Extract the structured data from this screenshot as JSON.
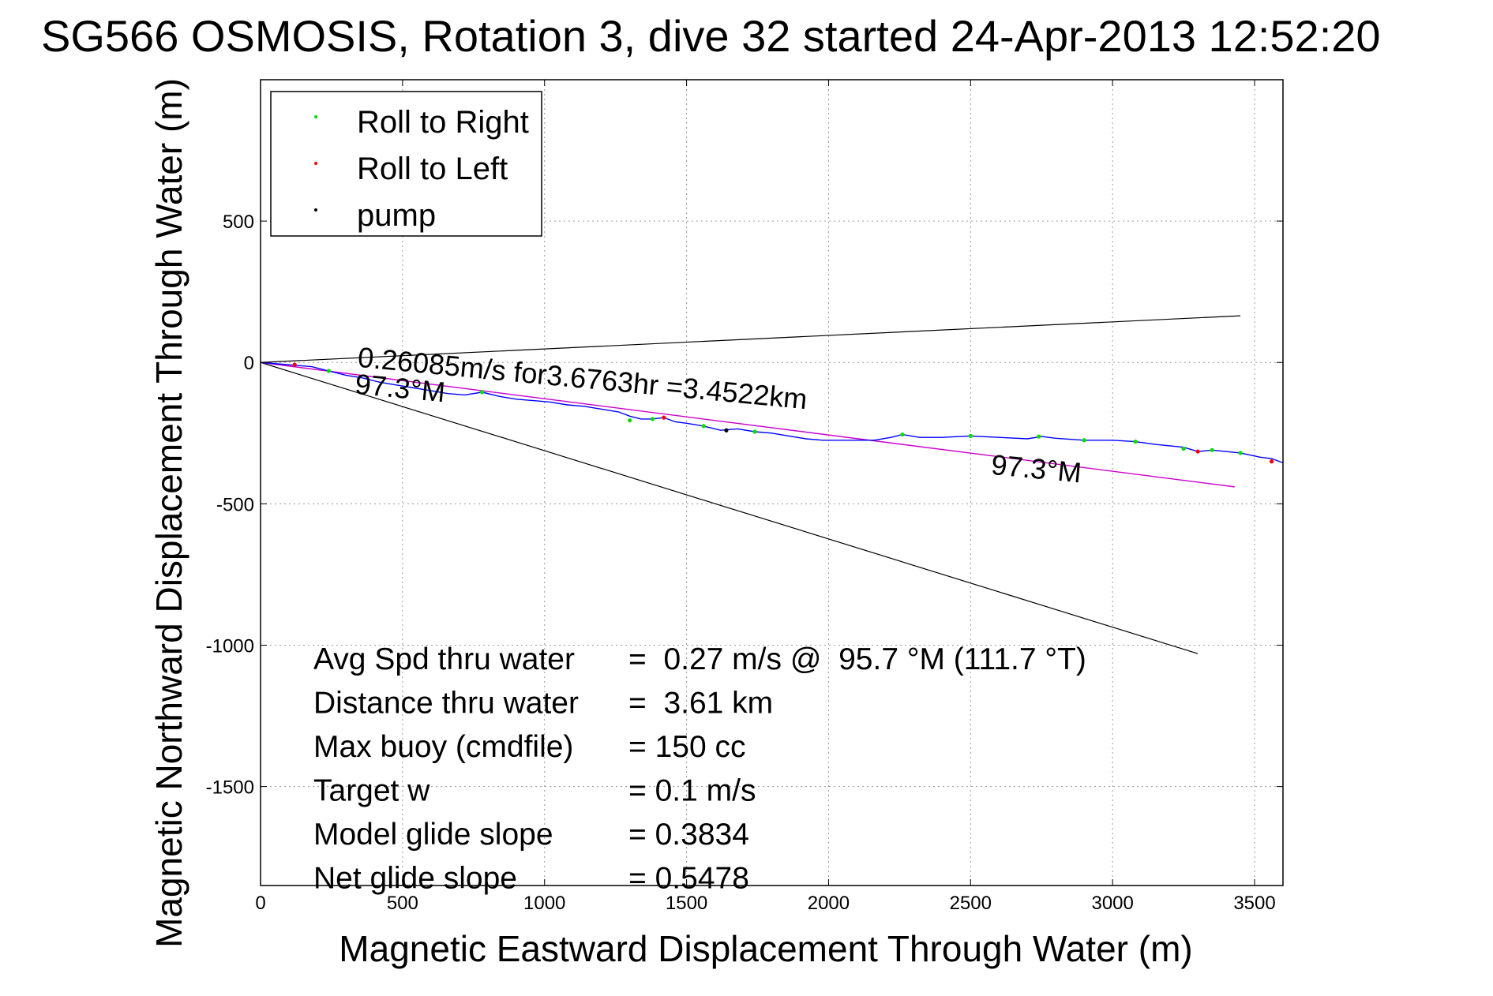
{
  "chart_data": {
    "type": "line",
    "title": "SG566 OSMOSIS, Rotation 3, dive 32 started 24-Apr-2013 12:52:20",
    "xlabel": "Magnetic Eastward Displacement Through Water (m)",
    "ylabel": "Magnetic Northward Displacement Through Water (m)",
    "xlim": [
      0,
      3600
    ],
    "ylim": [
      -1850,
      1000
    ],
    "x_ticks": [
      "0",
      "500",
      "1000",
      "1500",
      "2000",
      "2500",
      "3000",
      "3500"
    ],
    "y_ticks": [
      "500",
      "0",
      "-500",
      "-1000",
      "-1500"
    ],
    "grid": true,
    "legend_placement": "top-left",
    "legend": [
      {
        "label": "Roll to Right",
        "color": "#00dd00"
      },
      {
        "label": "Roll to Left",
        "color": "#ff0000"
      },
      {
        "label": "pump",
        "color": "#000000"
      }
    ],
    "track": {
      "color": "#0000ff",
      "points": [
        [
          0,
          0
        ],
        [
          60,
          -5
        ],
        [
          120,
          -10
        ],
        [
          180,
          -15
        ],
        [
          240,
          -30
        ],
        [
          300,
          -45
        ],
        [
          360,
          -55
        ],
        [
          420,
          -70
        ],
        [
          480,
          -80
        ],
        [
          540,
          -90
        ],
        [
          600,
          -100
        ],
        [
          660,
          -110
        ],
        [
          720,
          -115
        ],
        [
          780,
          -105
        ],
        [
          840,
          -120
        ],
        [
          900,
          -130
        ],
        [
          960,
          -135
        ],
        [
          1020,
          -140
        ],
        [
          1080,
          -150
        ],
        [
          1140,
          -155
        ],
        [
          1200,
          -165
        ],
        [
          1260,
          -175
        ],
        [
          1300,
          -190
        ],
        [
          1340,
          -200
        ],
        [
          1380,
          -200
        ],
        [
          1420,
          -195
        ],
        [
          1460,
          -210
        ],
        [
          1500,
          -215
        ],
        [
          1560,
          -225
        ],
        [
          1620,
          -240
        ],
        [
          1680,
          -235
        ],
        [
          1740,
          -245
        ],
        [
          1800,
          -250
        ],
        [
          1860,
          -260
        ],
        [
          1920,
          -270
        ],
        [
          1980,
          -275
        ],
        [
          2040,
          -275
        ],
        [
          2100,
          -275
        ],
        [
          2160,
          -275
        ],
        [
          2220,
          -265
        ],
        [
          2260,
          -255
        ],
        [
          2320,
          -265
        ],
        [
          2400,
          -265
        ],
        [
          2500,
          -260
        ],
        [
          2600,
          -265
        ],
        [
          2700,
          -270
        ],
        [
          2750,
          -262
        ],
        [
          2800,
          -268
        ],
        [
          2900,
          -275
        ],
        [
          3000,
          -275
        ],
        [
          3080,
          -280
        ],
        [
          3150,
          -290
        ],
        [
          3250,
          -300
        ],
        [
          3300,
          -315
        ],
        [
          3350,
          -310
        ],
        [
          3450,
          -320
        ],
        [
          3520,
          -335
        ],
        [
          3560,
          -340
        ],
        [
          3600,
          -355
        ]
      ]
    },
    "roll_right_points": [
      [
        240,
        -30
      ],
      [
        780,
        -105
      ],
      [
        1300,
        -205
      ],
      [
        1380,
        -200
      ],
      [
        1560,
        -225
      ],
      [
        1740,
        -245
      ],
      [
        2260,
        -255
      ],
      [
        2500,
        -260
      ],
      [
        2740,
        -262
      ],
      [
        2900,
        -275
      ],
      [
        3080,
        -280
      ],
      [
        3250,
        -305
      ],
      [
        3350,
        -310
      ],
      [
        3450,
        -320
      ]
    ],
    "roll_left_points": [
      [
        120,
        -8
      ],
      [
        1420,
        -195
      ],
      [
        3300,
        -315
      ],
      [
        3560,
        -350
      ]
    ],
    "pump_points": [
      [
        1640,
        -240
      ]
    ],
    "heading_line": {
      "color": "#cc00cc",
      "from": [
        0,
        0
      ],
      "to": [
        3430,
        -440
      ]
    },
    "envelope_lines": {
      "color": "#000000",
      "lines": [
        {
          "from": [
            0,
            0
          ],
          "to": [
            3450,
            165
          ]
        },
        {
          "from": [
            0,
            0
          ],
          "to": [
            3300,
            -1030
          ]
        }
      ]
    },
    "annotations": [
      {
        "text": "0.26085m/s for3.6763hr =3.4522km",
        "x": 340,
        "y": -15,
        "angle": 5.4
      },
      {
        "text": "97.3°M",
        "x": 330,
        "y": -110,
        "angle": 5.4
      },
      {
        "text": "97.3°M",
        "x": 2570,
        "y": -395,
        "angle": 5.4
      }
    ],
    "stats": [
      {
        "label": "Avg Spd thru water",
        "value": "=  0.27 m/s @  95.7 °M (111.7 °T)"
      },
      {
        "label": "Distance thru water",
        "value": "=  3.61 km"
      },
      {
        "label": "Max buoy (cmdfile)",
        "value": "= 150 cc"
      },
      {
        "label": "Target w",
        "value": "= 0.1 m/s"
      },
      {
        "label": "Model glide slope",
        "value": "= 0.3834"
      },
      {
        "label": "Net glide slope",
        "value": "= 0.5478"
      }
    ]
  }
}
